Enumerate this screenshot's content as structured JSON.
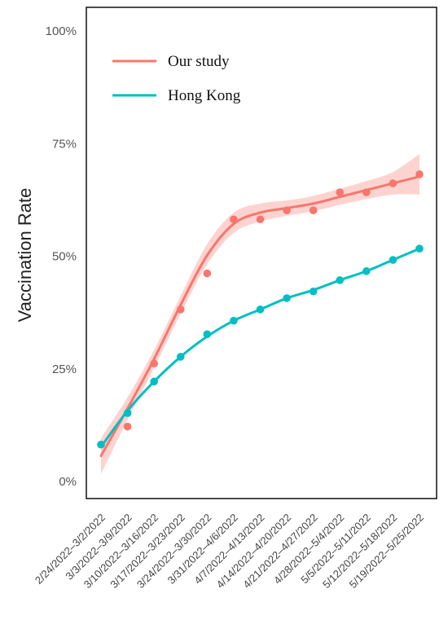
{
  "chart_data": {
    "type": "line",
    "ylabel": "Vaccination Rate",
    "xlabel": "",
    "ylim": [
      0,
      100
    ],
    "yticks": [
      0,
      25,
      50,
      75,
      100
    ],
    "ytick_labels": [
      "0%",
      "25%",
      "50%",
      "75%",
      "100%"
    ],
    "grid": false,
    "legend_position": "top-left",
    "categories": [
      "2/24/2022–3/2/2022",
      "3/3/2022–3/9/2022",
      "3/10/2022–3/16/2022",
      "3/17/2022–3/23/2022",
      "3/24/2022–3/30/2022",
      "3/31/2022–4/6/2022",
      "4/7/2022–4/13/2022",
      "4/14/2022–4/20/2022",
      "4/21/2022–4/27/2022",
      "4/28/2022–5/4/2022",
      "5/5/2022–5/11/2022",
      "5/12/2022–5/18/2022",
      "5/19/2022–5/25/2022"
    ],
    "series": [
      {
        "name": "Our study",
        "color": "#f8766d",
        "points": [
          8,
          12,
          26,
          38,
          46,
          58,
          58,
          60,
          60,
          64,
          64,
          66,
          68
        ],
        "smooth": [
          5.5,
          16,
          27,
          39,
          50,
          57,
          59.5,
          60.5,
          61.5,
          63,
          64.5,
          66,
          67.5
        ],
        "ci_lower": [
          1.5,
          13.5,
          25,
          37,
          48,
          55,
          57.5,
          58.8,
          59.8,
          61.2,
          62.5,
          63.5,
          63.5
        ],
        "ci_upper": [
          9.5,
          18.5,
          29,
          41,
          52.5,
          59.5,
          61.5,
          62.2,
          63.2,
          64.8,
          66.5,
          68.5,
          72.5
        ]
      },
      {
        "name": "Hong Kong",
        "color": "#00bfc4",
        "points": [
          8,
          15,
          22,
          27.5,
          32.5,
          35.5,
          38,
          40.5,
          42,
          44.5,
          46.5,
          49,
          51.5
        ],
        "smooth": [
          7.5,
          15.5,
          22,
          27.5,
          32,
          35.5,
          38,
          40.5,
          42.3,
          44.5,
          46.5,
          49,
          51.5
        ]
      }
    ]
  }
}
